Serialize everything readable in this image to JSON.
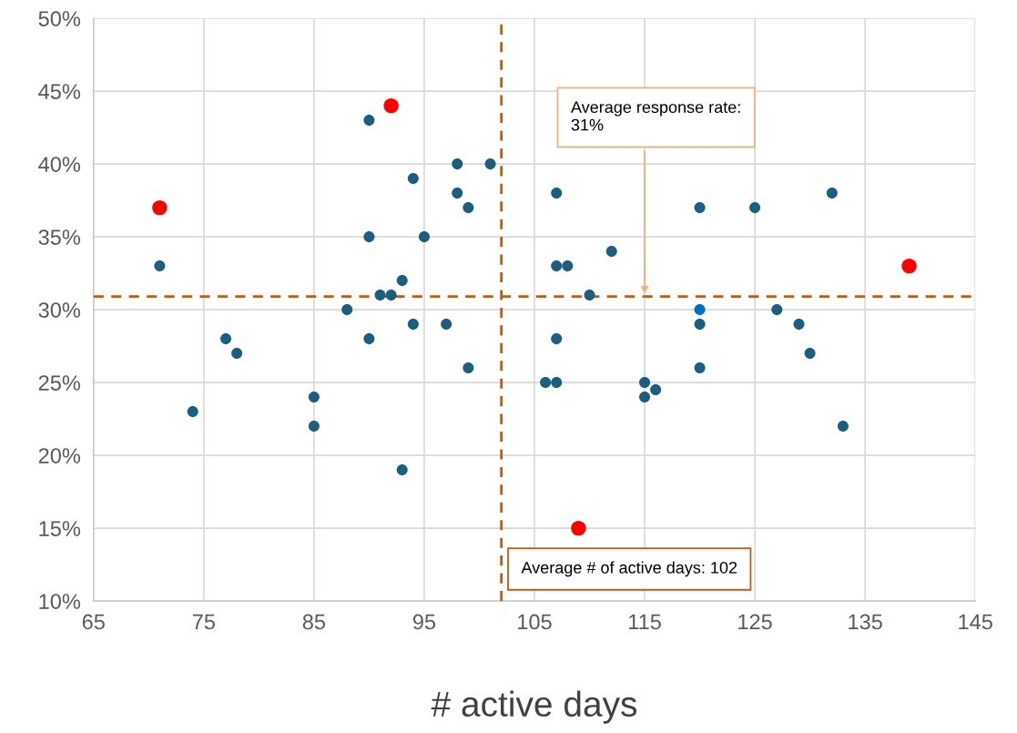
{
  "chart_data": {
    "type": "scatter",
    "xlabel": "# active days",
    "series": [
      {
        "color": "#1a5e80",
        "x": [
          71,
          74,
          77,
          78,
          85,
          85,
          88,
          90,
          90,
          90,
          91,
          92,
          93,
          93,
          94,
          94,
          95,
          97,
          98,
          98,
          99,
          99,
          101,
          106,
          107,
          107,
          107,
          107,
          108,
          110,
          112,
          115,
          115,
          116,
          120,
          120,
          120,
          125,
          127,
          129,
          130,
          132,
          133
        ],
        "values": [
          33,
          23,
          28,
          27,
          24,
          22,
          30,
          43,
          35,
          28,
          31,
          31,
          32,
          19,
          39,
          29,
          35,
          29,
          40,
          38,
          37,
          26,
          40,
          25,
          38,
          33,
          28,
          25,
          33,
          31,
          34,
          25,
          24,
          24.5,
          37,
          29,
          26,
          37,
          30,
          29,
          27,
          38,
          22
        ]
      },
      {
        "color": "#0070c0",
        "x": [
          120
        ],
        "values": [
          30
        ]
      },
      {
        "color": "#ff0000",
        "x": [
          71,
          92,
          139,
          109
        ],
        "values": [
          37,
          44,
          33,
          15
        ]
      }
    ],
    "xlim": [
      65,
      145
    ],
    "xticks": [
      65,
      75,
      85,
      95,
      105,
      115,
      125,
      135,
      145
    ],
    "ylim": [
      10,
      50
    ],
    "yticks": [
      {
        "value": 10,
        "label": "10%"
      },
      {
        "value": 15,
        "label": "15%"
      },
      {
        "value": 20,
        "label": "20%"
      },
      {
        "value": 25,
        "label": "25%"
      },
      {
        "value": 30,
        "label": "30%"
      },
      {
        "value": 35,
        "label": "35%"
      },
      {
        "value": 40,
        "label": "40%"
      },
      {
        "value": 45,
        "label": "45%"
      },
      {
        "value": 50,
        "label": "50%"
      }
    ],
    "grid": true,
    "marker": "circle",
    "ref_lines": [
      {
        "axis": "x",
        "value": 102,
        "label": "Average # of active days: 102",
        "color": "#c55a11",
        "line_style": "dashed"
      },
      {
        "axis": "y",
        "value": 30.9,
        "color": "#c55a11",
        "line_style": "dashed"
      }
    ],
    "annotations": [
      "Average response rate:\n31%"
    ]
  }
}
